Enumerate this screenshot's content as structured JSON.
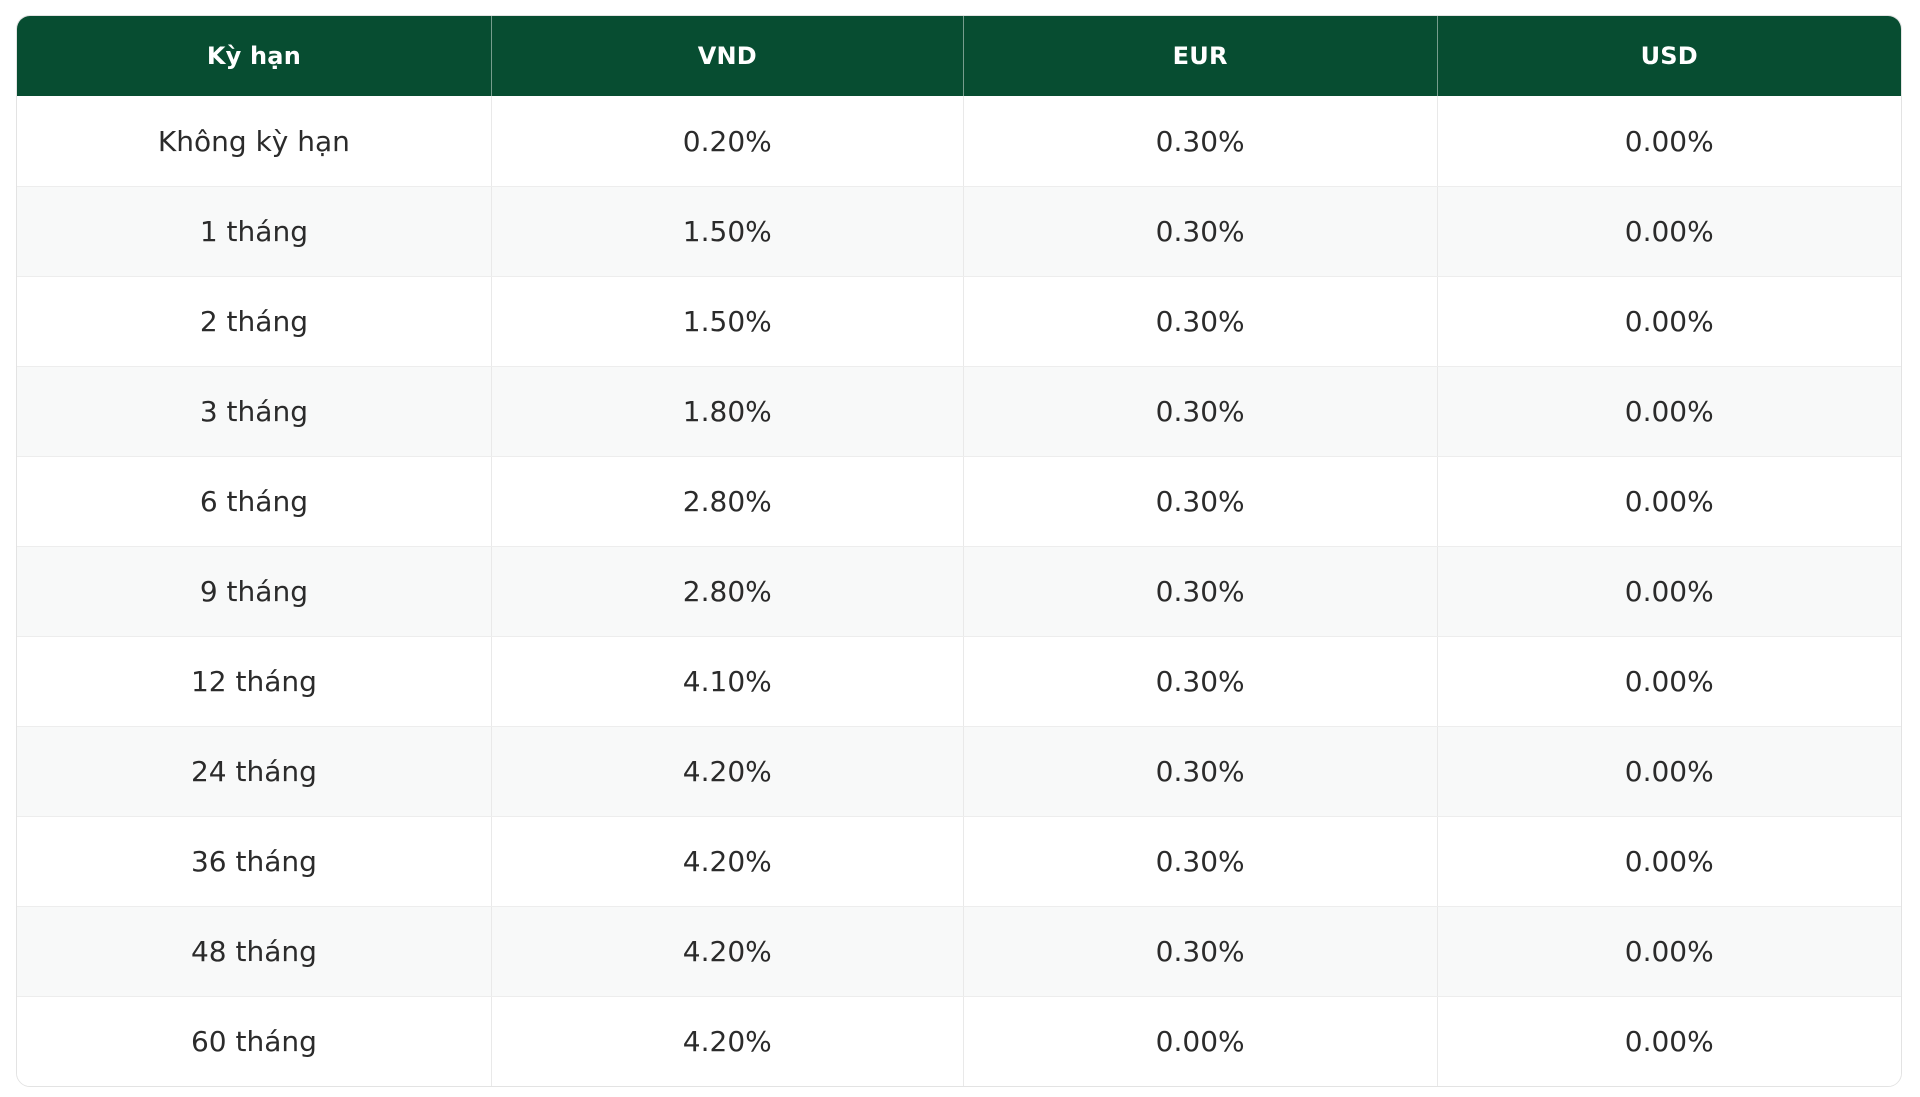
{
  "table": {
    "columns": [
      "Kỳ hạn",
      "VND",
      "EUR",
      "USD"
    ],
    "rows": [
      {
        "term": "Không kỳ hạn",
        "vnd": "0.20%",
        "eur": "0.30%",
        "usd": "0.00%"
      },
      {
        "term": "1 tháng",
        "vnd": "1.50%",
        "eur": "0.30%",
        "usd": "0.00%"
      },
      {
        "term": "2 tháng",
        "vnd": "1.50%",
        "eur": "0.30%",
        "usd": "0.00%"
      },
      {
        "term": "3 tháng",
        "vnd": "1.80%",
        "eur": "0.30%",
        "usd": "0.00%"
      },
      {
        "term": "6 tháng",
        "vnd": "2.80%",
        "eur": "0.30%",
        "usd": "0.00%"
      },
      {
        "term": "9 tháng",
        "vnd": "2.80%",
        "eur": "0.30%",
        "usd": "0.00%"
      },
      {
        "term": "12 tháng",
        "vnd": "4.10%",
        "eur": "0.30%",
        "usd": "0.00%"
      },
      {
        "term": "24 tháng",
        "vnd": "4.20%",
        "eur": "0.30%",
        "usd": "0.00%"
      },
      {
        "term": "36 tháng",
        "vnd": "4.20%",
        "eur": "0.30%",
        "usd": "0.00%"
      },
      {
        "term": "48 tháng",
        "vnd": "4.20%",
        "eur": "0.30%",
        "usd": "0.00%"
      },
      {
        "term": "60 tháng",
        "vnd": "4.20%",
        "eur": "0.00%",
        "usd": "0.00%"
      }
    ]
  },
  "colors": {
    "header_bg": "#074d31",
    "header_text": "#ffffff",
    "row_bg": "#ffffff",
    "row_alt_bg": "#f8f9f9",
    "body_text": "#2b2b2b",
    "divider": "#e9e9e9",
    "outer_border": "#e3e3e3"
  }
}
